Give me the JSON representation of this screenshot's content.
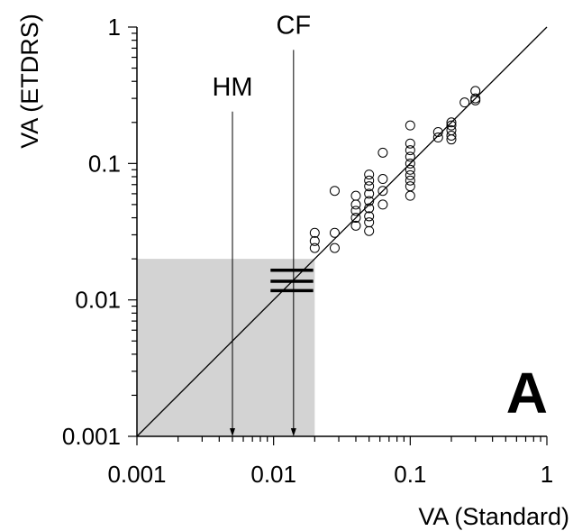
{
  "chart_data": {
    "type": "scatter",
    "xlabel": "VA (Standard)",
    "ylabel": "VA (ETDRS)",
    "xscale": "log",
    "yscale": "log",
    "xlim": [
      0.001,
      1
    ],
    "ylim": [
      0.001,
      1
    ],
    "xticks": [
      "0.001",
      "0.01",
      "0.1",
      "1"
    ],
    "yticks": [
      "0.001",
      "0.01",
      "0.1",
      "1"
    ],
    "panel_label": "A",
    "identity_line": true,
    "shaded_region": {
      "x": [
        0.001,
        0.02
      ],
      "y": [
        0.001,
        0.02
      ],
      "color": "#d3d3d3"
    },
    "annotations": [
      {
        "label": "HM",
        "x": 0.005,
        "arrow_from_y": 0.24,
        "arrow_to_y": 0.001
      },
      {
        "label": "CF",
        "x": 0.014,
        "arrow_from_y": 0.68,
        "arrow_to_y": 0.001
      }
    ],
    "horizontal_bars": {
      "x_range": [
        0.0095,
        0.0195
      ],
      "y": [
        0.0165,
        0.0137,
        0.0117
      ]
    },
    "points": [
      [
        0.02,
        0.031
      ],
      [
        0.02,
        0.027
      ],
      [
        0.02,
        0.024
      ],
      [
        0.028,
        0.031
      ],
      [
        0.028,
        0.024
      ],
      [
        0.028,
        0.063
      ],
      [
        0.04,
        0.058
      ],
      [
        0.04,
        0.05
      ],
      [
        0.04,
        0.045
      ],
      [
        0.04,
        0.04
      ],
      [
        0.04,
        0.035
      ],
      [
        0.05,
        0.083
      ],
      [
        0.05,
        0.075
      ],
      [
        0.05,
        0.068
      ],
      [
        0.05,
        0.06
      ],
      [
        0.05,
        0.053
      ],
      [
        0.05,
        0.047
      ],
      [
        0.05,
        0.041
      ],
      [
        0.05,
        0.037
      ],
      [
        0.05,
        0.032
      ],
      [
        0.063,
        0.12
      ],
      [
        0.063,
        0.077
      ],
      [
        0.063,
        0.063
      ],
      [
        0.063,
        0.05
      ],
      [
        0.1,
        0.19
      ],
      [
        0.1,
        0.14
      ],
      [
        0.1,
        0.125
      ],
      [
        0.1,
        0.112
      ],
      [
        0.1,
        0.1
      ],
      [
        0.1,
        0.09
      ],
      [
        0.1,
        0.082
      ],
      [
        0.1,
        0.075
      ],
      [
        0.1,
        0.068
      ],
      [
        0.1,
        0.058
      ],
      [
        0.16,
        0.17
      ],
      [
        0.16,
        0.155
      ],
      [
        0.2,
        0.2
      ],
      [
        0.2,
        0.19
      ],
      [
        0.2,
        0.175
      ],
      [
        0.2,
        0.16
      ],
      [
        0.2,
        0.15
      ],
      [
        0.25,
        0.28
      ],
      [
        0.3,
        0.34
      ],
      [
        0.3,
        0.3
      ],
      [
        0.3,
        0.29
      ]
    ]
  }
}
